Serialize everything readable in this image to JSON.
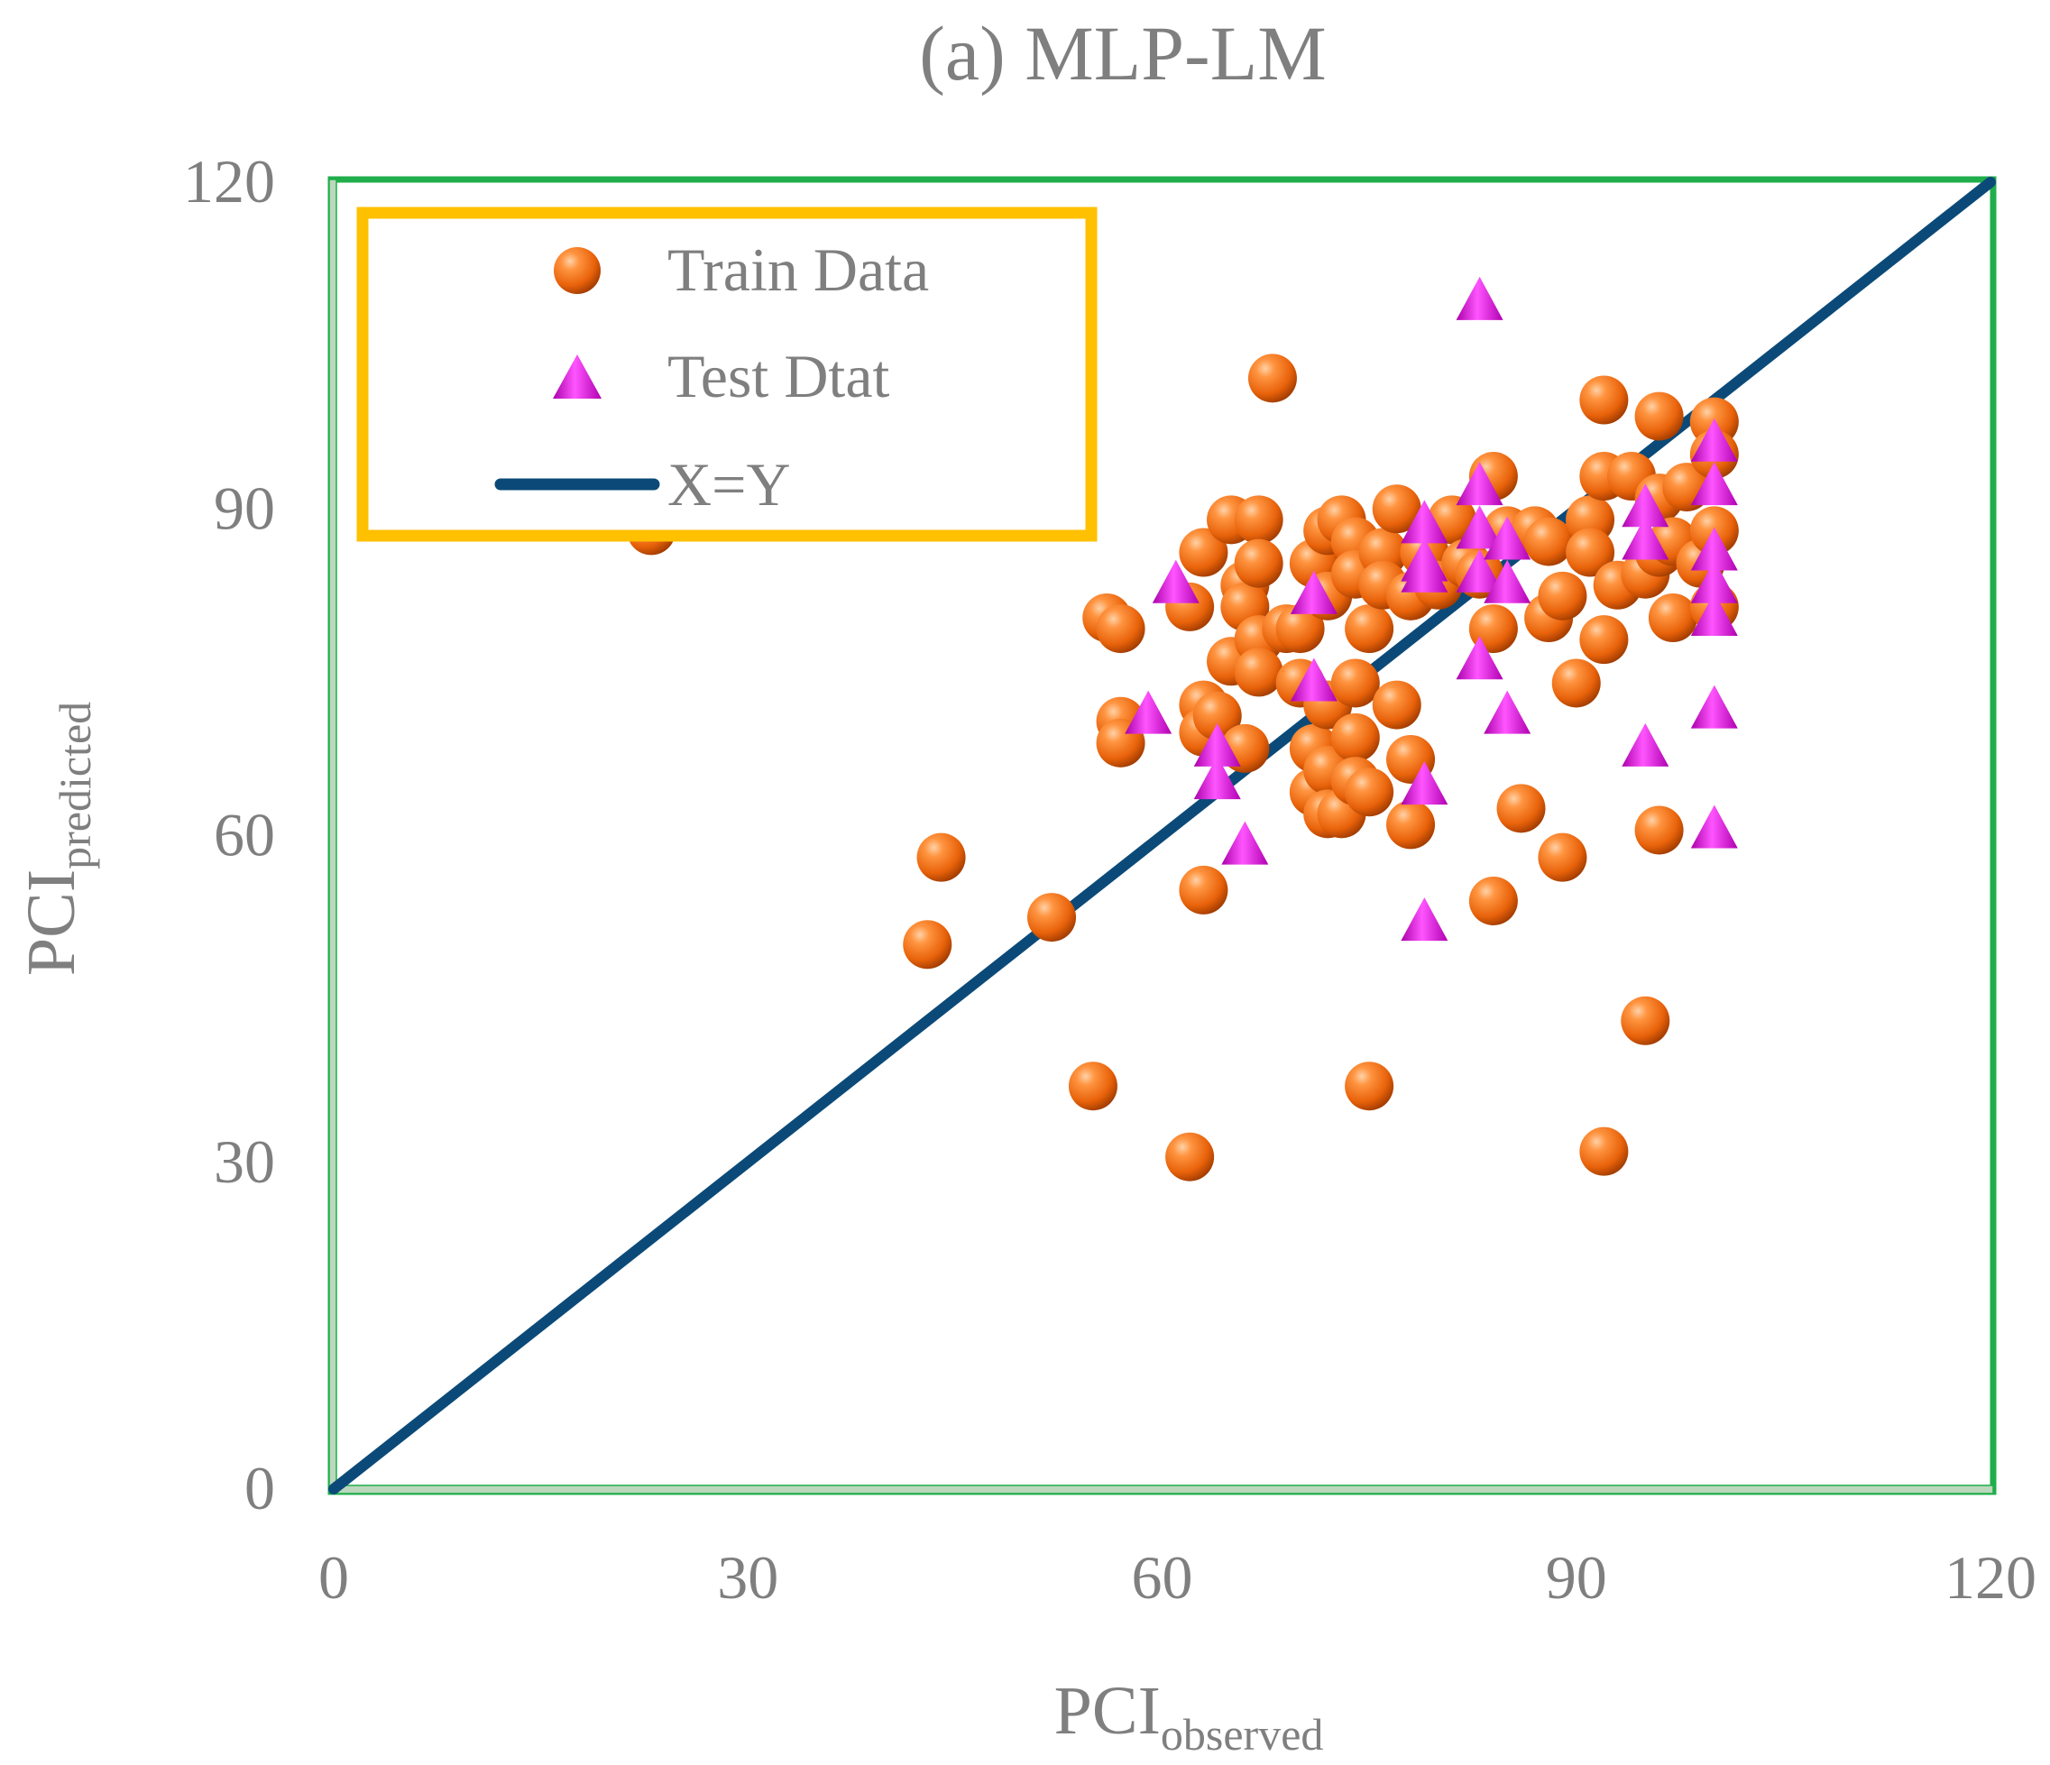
{
  "chart_data": {
    "type": "scatter",
    "title": "(a) MLP-LM",
    "xlabel": {
      "base": "PCI",
      "sub": "observed"
    },
    "ylabel": {
      "base": "PCI",
      "sub": "predicted"
    },
    "xlim": [
      0,
      120
    ],
    "ylim": [
      0,
      120
    ],
    "xticks": [
      "0",
      "30",
      "60",
      "90",
      "120"
    ],
    "yticks": [
      "0",
      "30",
      "60",
      "90",
      "120"
    ],
    "xtick_values": [
      0,
      30,
      60,
      90,
      120
    ],
    "ytick_values": [
      0,
      30,
      60,
      90,
      120
    ],
    "grid": false,
    "legend_position": "top-left",
    "colors": {
      "frame": "#1fae4b",
      "axis": "#a8c8a8",
      "train": "#e8620a",
      "train_highlight": "#ffb070",
      "train_shadow": "#a33e00",
      "test": "#cc00cc",
      "test_highlight": "#ff66ff",
      "test_shadow": "#880088",
      "line": "#0b4a78",
      "legend_border": "#ffc000",
      "text": "#7f7f7f"
    },
    "legend": [
      {
        "label": "Train Data",
        "symbol": "sphere"
      },
      {
        "label": "Test Dtat",
        "symbol": "triangle"
      },
      {
        "label": "X=Y",
        "symbol": "line"
      }
    ],
    "series": [
      {
        "name": "Train Data",
        "marker": "sphere",
        "points": [
          [
            23,
            88
          ],
          [
            43,
            50
          ],
          [
            44,
            58
          ],
          [
            52,
            52.5
          ],
          [
            55,
            37
          ],
          [
            56,
            80
          ],
          [
            57,
            79
          ],
          [
            57,
            70.5
          ],
          [
            57,
            68.5
          ],
          [
            62,
            30.5
          ],
          [
            62,
            81
          ],
          [
            63,
            86
          ],
          [
            63,
            72
          ],
          [
            63,
            69.5
          ],
          [
            63,
            55
          ],
          [
            64,
            71
          ],
          [
            65,
            89
          ],
          [
            65,
            76
          ],
          [
            66,
            83
          ],
          [
            66,
            81
          ],
          [
            66,
            68
          ],
          [
            67,
            89
          ],
          [
            67,
            85
          ],
          [
            67,
            78
          ],
          [
            67,
            75
          ],
          [
            68,
            102
          ],
          [
            69,
            79
          ],
          [
            70,
            79
          ],
          [
            70,
            74
          ],
          [
            71,
            85
          ],
          [
            71,
            68
          ],
          [
            71,
            64
          ],
          [
            72,
            88
          ],
          [
            72,
            82
          ],
          [
            72,
            72
          ],
          [
            72,
            66
          ],
          [
            72,
            62
          ],
          [
            73,
            89
          ],
          [
            73,
            62
          ],
          [
            74,
            87
          ],
          [
            74,
            84
          ],
          [
            74,
            74
          ],
          [
            74,
            69
          ],
          [
            74,
            65
          ],
          [
            75,
            79
          ],
          [
            75,
            64
          ],
          [
            75,
            37
          ],
          [
            76,
            86
          ],
          [
            76,
            83
          ],
          [
            77,
            90
          ],
          [
            77,
            72
          ],
          [
            78,
            82
          ],
          [
            78,
            67
          ],
          [
            78,
            61
          ],
          [
            79,
            86
          ],
          [
            80,
            83
          ],
          [
            81,
            89
          ],
          [
            82,
            85
          ],
          [
            83,
            84
          ],
          [
            84,
            93
          ],
          [
            84,
            79
          ],
          [
            84,
            54
          ],
          [
            85,
            88
          ],
          [
            86,
            62.5
          ],
          [
            87,
            88
          ],
          [
            88,
            87
          ],
          [
            88,
            80
          ],
          [
            89,
            82
          ],
          [
            89,
            58
          ],
          [
            90,
            74
          ],
          [
            91,
            89
          ],
          [
            91,
            86
          ],
          [
            92,
            100
          ],
          [
            92,
            93
          ],
          [
            92,
            78
          ],
          [
            92,
            31
          ],
          [
            93,
            83
          ],
          [
            94,
            93
          ],
          [
            95,
            84
          ],
          [
            95,
            43
          ],
          [
            96,
            98.5
          ],
          [
            96,
            91
          ],
          [
            96,
            86
          ],
          [
            96,
            60.5
          ],
          [
            97,
            87
          ],
          [
            97,
            80
          ],
          [
            98,
            92
          ],
          [
            99,
            85
          ],
          [
            100,
            98
          ],
          [
            100,
            95
          ],
          [
            100,
            88
          ],
          [
            100,
            81
          ]
        ]
      },
      {
        "name": "Test Dtat",
        "marker": "triangle",
        "points": [
          [
            59,
            71
          ],
          [
            61,
            83
          ],
          [
            64,
            68
          ],
          [
            64,
            65
          ],
          [
            66,
            59
          ],
          [
            71,
            82
          ],
          [
            71,
            74
          ],
          [
            79,
            88.5
          ],
          [
            79,
            85
          ],
          [
            79,
            84
          ],
          [
            79,
            64.5
          ],
          [
            79,
            52
          ],
          [
            83,
            109
          ],
          [
            83,
            92
          ],
          [
            83,
            88
          ],
          [
            83,
            84
          ],
          [
            83,
            76
          ],
          [
            85,
            87
          ],
          [
            85,
            83
          ],
          [
            85,
            71
          ],
          [
            95,
            90
          ],
          [
            95,
            87
          ],
          [
            95,
            68
          ],
          [
            100,
            96
          ],
          [
            100,
            92
          ],
          [
            100,
            86
          ],
          [
            100,
            83
          ],
          [
            100,
            80
          ],
          [
            100,
            71.5
          ],
          [
            100,
            60.5
          ]
        ]
      },
      {
        "name": "X=Y",
        "marker": "line",
        "points": [
          [
            0,
            0
          ],
          [
            120,
            120
          ]
        ]
      }
    ]
  }
}
